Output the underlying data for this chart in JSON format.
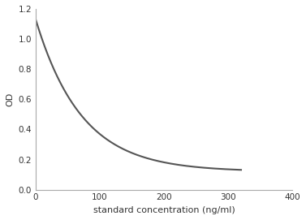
{
  "title": "",
  "xlabel": "standard concentration (ng/ml)",
  "ylabel": "OD",
  "xlim": [
    0,
    400
  ],
  "ylim": [
    0,
    1.2
  ],
  "xticks": [
    0,
    100,
    200,
    300,
    400
  ],
  "yticks": [
    0,
    0.2,
    0.4,
    0.6,
    0.8,
    1.0,
    1.2
  ],
  "line_color": "#555555",
  "line_width": 1.5,
  "background_color": "#ffffff",
  "curve_start_x": 0.5,
  "curve_end_x": 320,
  "curve_start_y": 1.13,
  "curve_asymptote": 0.12,
  "decay_rate": 0.014
}
